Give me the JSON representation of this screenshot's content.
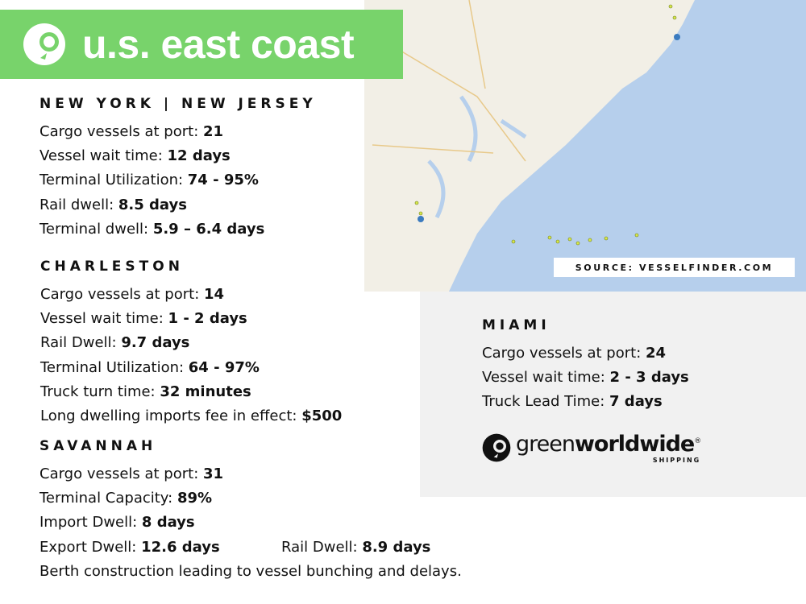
{
  "banner": {
    "title": "u.s. east coast",
    "icon": "greenworldwide-logo"
  },
  "map": {
    "source": "SOURCE: VESSELFINDER.COM",
    "colors": {
      "land": "#f2efe6",
      "water": "#b6cfec",
      "vessel": "#d8e84a"
    }
  },
  "new_york": {
    "heading": "NEW YORK | NEW JERSEY",
    "rows": [
      {
        "label": "Cargo vessels at port:  ",
        "value": "21"
      },
      {
        "label": "Vessel wait time: ",
        "value": "12 days"
      },
      {
        "label": "Terminal Utilization: ",
        "value": "74 - 95%"
      },
      {
        "label": "Rail dwell: ",
        "value": "8.5 days"
      },
      {
        "label": "Terminal dwell: ",
        "value": "5.9 – 6.4 days"
      }
    ]
  },
  "charleston": {
    "heading": "CHARLESTON",
    "rows": [
      {
        "label": "Cargo vessels at port: ",
        "value": "14"
      },
      {
        "label": "Vessel wait time: ",
        "value": "1 - 2 days"
      },
      {
        "label": "Rail Dwell: ",
        "value": "9.7 days"
      },
      {
        "label": "Terminal Utilization: ",
        "value": "64 - 97%"
      },
      {
        "label": "Truck turn time: ",
        "value": "32 minutes"
      },
      {
        "label": "Long dwelling imports fee in effect: ",
        "value": "$500"
      }
    ]
  },
  "savannah": {
    "heading": "SAVANNAH",
    "rows": [
      {
        "label": "Cargo vessels at port: ",
        "value": "31"
      },
      {
        "label": "Terminal Capacity: ",
        "value": "89%"
      },
      {
        "label": "Import Dwell: ",
        "value": "8 days"
      }
    ],
    "export": {
      "label": "Export Dwell: ",
      "value": "12.6 days"
    },
    "rail": {
      "label": "Rail Dwell: ",
      "value": "8.9 days"
    },
    "note": "Berth construction leading to vessel bunching and delays."
  },
  "miami": {
    "heading": "MIAMI",
    "rows": [
      {
        "label": "Cargo vessels at port: ",
        "value": "24"
      },
      {
        "label": "Vessel wait time: ",
        "value": "2 - 3 days"
      },
      {
        "label": "Truck Lead Time: ",
        "value": "7 days"
      }
    ]
  },
  "logo": {
    "name_light": "green",
    "name_bold": "worldwide",
    "reg": "®",
    "sub": "SHIPPING"
  },
  "colors": {
    "accent": "#78d36b",
    "panel": "#f1f1f1"
  }
}
